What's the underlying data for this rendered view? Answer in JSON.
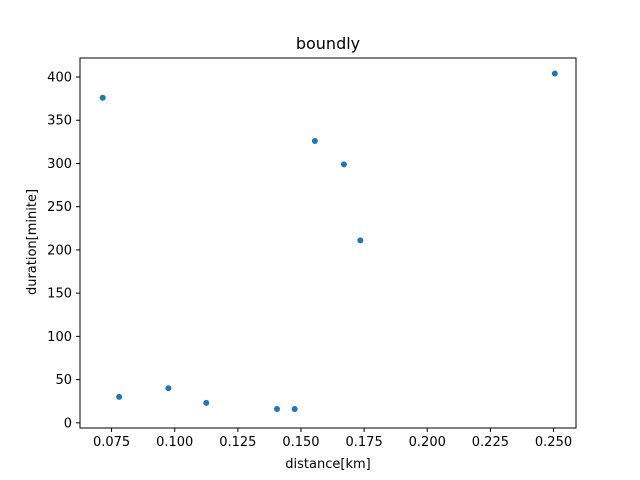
{
  "chart_data": {
    "type": "scatter",
    "title": "boundly",
    "xlabel": "distance[km]",
    "ylabel": "duration[minite]",
    "xlim": [
      0.0625,
      0.2589
    ],
    "ylim": [
      -6,
      422
    ],
    "xticks": [
      0.075,
      0.1,
      0.125,
      0.15,
      0.175,
      0.2,
      0.225,
      0.25
    ],
    "xtick_labels": [
      "0.075",
      "0.100",
      "0.125",
      "0.150",
      "0.175",
      "0.200",
      "0.225",
      "0.250"
    ],
    "yticks": [
      0,
      50,
      100,
      150,
      200,
      250,
      300,
      350,
      400
    ],
    "ytick_labels": [
      "0",
      "50",
      "100",
      "150",
      "200",
      "250",
      "300",
      "350",
      "400"
    ],
    "grid": false,
    "point_color": "#1f77b4",
    "series": [
      {
        "x": [
          0.0715,
          0.078,
          0.0975,
          0.1125,
          0.1405,
          0.1475,
          0.1555,
          0.167,
          0.1735,
          0.2505
        ],
        "y": [
          376,
          30,
          40,
          23,
          16,
          16,
          326,
          299,
          211,
          404
        ]
      }
    ]
  }
}
